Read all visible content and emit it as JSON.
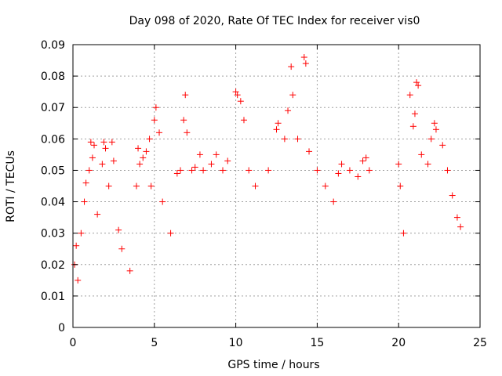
{
  "chart_data": {
    "type": "scatter",
    "title": "Day 098 of 2020, Rate Of TEC Index for receiver vis0",
    "xlabel": "GPS time / hours",
    "ylabel": "ROTI / TECUs",
    "xlim": [
      0,
      25
    ],
    "ylim": [
      0,
      0.09
    ],
    "xticks": [
      0,
      5,
      10,
      15,
      20,
      25
    ],
    "xtick_labels": [
      "0",
      "5",
      "10",
      "15",
      "20",
      "25"
    ],
    "yticks": [
      0,
      0.01,
      0.02,
      0.03,
      0.04,
      0.05,
      0.06,
      0.07,
      0.08,
      0.09
    ],
    "ytick_labels": [
      "0",
      "0.01",
      "0.02",
      "0.03",
      "0.04",
      "0.05",
      "0.06",
      "0.07",
      "0.08",
      "0.09"
    ],
    "grid": true,
    "marker": "+",
    "color": "#ff0000",
    "series": [
      {
        "points": [
          [
            0.1,
            0.02
          ],
          [
            0.2,
            0.026
          ],
          [
            0.3,
            0.015
          ],
          [
            0.5,
            0.03
          ],
          [
            0.7,
            0.04
          ],
          [
            0.8,
            0.046
          ],
          [
            1.0,
            0.05
          ],
          [
            1.1,
            0.059
          ],
          [
            1.2,
            0.054
          ],
          [
            1.3,
            0.058
          ],
          [
            1.5,
            0.036
          ],
          [
            1.8,
            0.052
          ],
          [
            1.9,
            0.059
          ],
          [
            2.0,
            0.057
          ],
          [
            2.2,
            0.045
          ],
          [
            2.4,
            0.059
          ],
          [
            2.5,
            0.053
          ],
          [
            2.8,
            0.031
          ],
          [
            3.0,
            0.025
          ],
          [
            3.5,
            0.018
          ],
          [
            3.9,
            0.045
          ],
          [
            4.0,
            0.057
          ],
          [
            4.1,
            0.052
          ],
          [
            4.3,
            0.054
          ],
          [
            4.5,
            0.056
          ],
          [
            4.7,
            0.06
          ],
          [
            4.8,
            0.045
          ],
          [
            5.0,
            0.066
          ],
          [
            5.1,
            0.07
          ],
          [
            5.3,
            0.062
          ],
          [
            5.5,
            0.04
          ],
          [
            6.0,
            0.03
          ],
          [
            6.4,
            0.049
          ],
          [
            6.6,
            0.05
          ],
          [
            6.8,
            0.066
          ],
          [
            6.9,
            0.074
          ],
          [
            7.0,
            0.062
          ],
          [
            7.3,
            0.05
          ],
          [
            7.5,
            0.051
          ],
          [
            7.8,
            0.055
          ],
          [
            8.0,
            0.05
          ],
          [
            8.5,
            0.052
          ],
          [
            8.8,
            0.055
          ],
          [
            9.2,
            0.05
          ],
          [
            9.5,
            0.053
          ],
          [
            10.0,
            0.075
          ],
          [
            10.1,
            0.074
          ],
          [
            10.3,
            0.072
          ],
          [
            10.5,
            0.066
          ],
          [
            10.8,
            0.05
          ],
          [
            11.2,
            0.045
          ],
          [
            12.0,
            0.05
          ],
          [
            12.5,
            0.063
          ],
          [
            12.6,
            0.065
          ],
          [
            13.0,
            0.06
          ],
          [
            13.2,
            0.069
          ],
          [
            13.4,
            0.083
          ],
          [
            13.5,
            0.074
          ],
          [
            13.8,
            0.06
          ],
          [
            14.2,
            0.086
          ],
          [
            14.3,
            0.084
          ],
          [
            14.5,
            0.056
          ],
          [
            15.0,
            0.05
          ],
          [
            15.5,
            0.045
          ],
          [
            16.0,
            0.04
          ],
          [
            16.3,
            0.049
          ],
          [
            16.5,
            0.052
          ],
          [
            17.0,
            0.05
          ],
          [
            17.5,
            0.048
          ],
          [
            17.8,
            0.053
          ],
          [
            18.0,
            0.054
          ],
          [
            18.2,
            0.05
          ],
          [
            20.0,
            0.052
          ],
          [
            20.1,
            0.045
          ],
          [
            20.3,
            0.03
          ],
          [
            20.7,
            0.074
          ],
          [
            20.9,
            0.064
          ],
          [
            21.0,
            0.068
          ],
          [
            21.1,
            0.078
          ],
          [
            21.2,
            0.077
          ],
          [
            21.4,
            0.055
          ],
          [
            21.8,
            0.052
          ],
          [
            22.0,
            0.06
          ],
          [
            22.2,
            0.065
          ],
          [
            22.3,
            0.063
          ],
          [
            22.7,
            0.058
          ],
          [
            23.0,
            0.05
          ],
          [
            23.3,
            0.042
          ],
          [
            23.6,
            0.035
          ],
          [
            23.8,
            0.032
          ]
        ]
      }
    ]
  }
}
